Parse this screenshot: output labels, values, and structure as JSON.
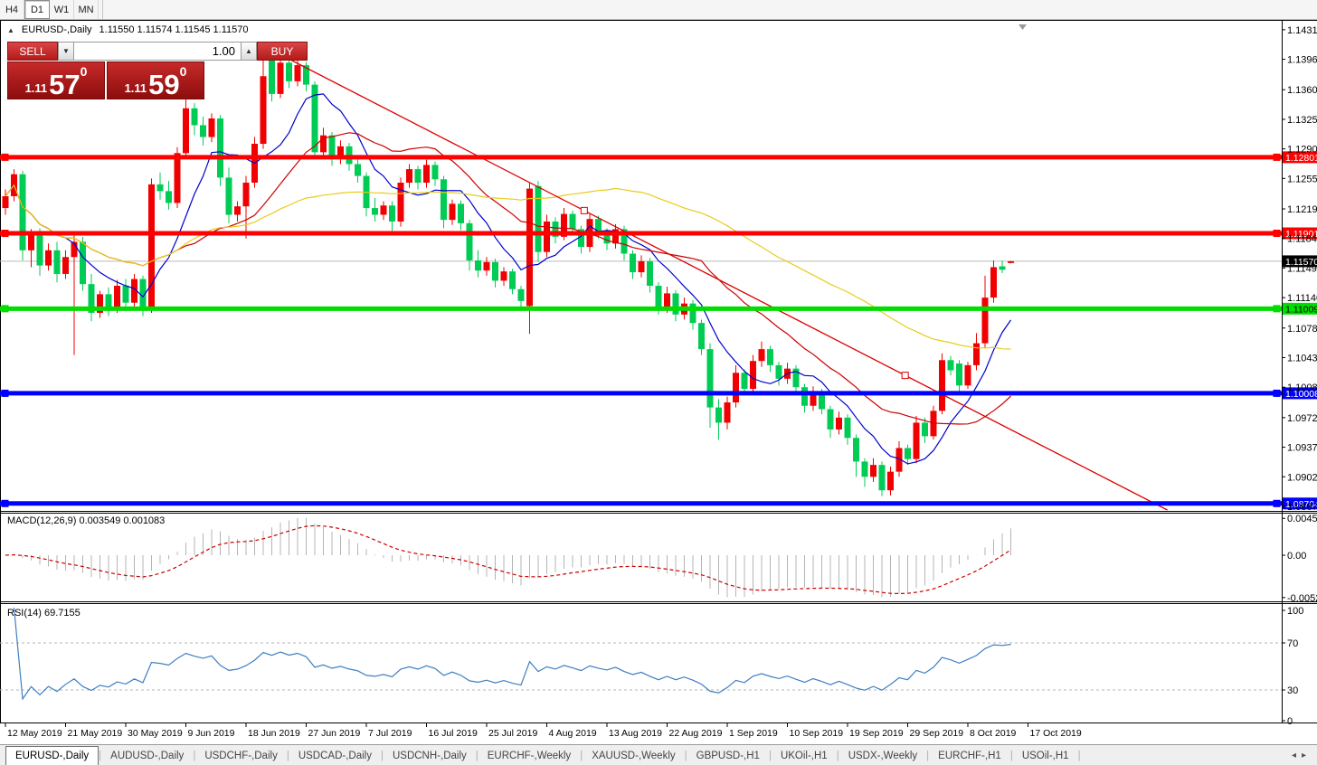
{
  "toolbar": {
    "timeframes": [
      "H4",
      "D1",
      "W1",
      "MN"
    ],
    "active": "D1"
  },
  "window": {
    "title_symbol": "EURUSD-,Daily",
    "title_ohlc": "1.11550 1.11574 1.11545 1.11570"
  },
  "trade_panel": {
    "sell_label": "SELL",
    "buy_label": "BUY",
    "volume": "1.00",
    "sell_price": {
      "prefix": "1.11",
      "pips": "57",
      "frac": "0"
    },
    "buy_price": {
      "prefix": "1.11",
      "pips": "59",
      "frac": "0"
    }
  },
  "price_axis": {
    "ticks": [
      "1.14310",
      "1.13960",
      "1.13600",
      "1.13250",
      "1.12900",
      "1.12550",
      "1.12190",
      "1.11840",
      "1.11490",
      "1.11140",
      "1.10780",
      "1.10430",
      "1.10080",
      "1.09720",
      "1.09370",
      "1.09020",
      "1.08670"
    ]
  },
  "levels": [
    {
      "label": "1.12801",
      "price": 1.12801,
      "color": "#ff0000",
      "text": "#fff"
    },
    {
      "label": "1.11901",
      "price": 1.11901,
      "color": "#ff0000",
      "text": "#fff"
    },
    {
      "label": "1.11009",
      "price": 1.11009,
      "color": "#00dd00",
      "text": "#000"
    },
    {
      "label": "1.10008",
      "price": 1.10008,
      "color": "#0000ff",
      "text": "#fff"
    },
    {
      "label": "1.08704",
      "price": 1.08704,
      "color": "#0000ff",
      "text": "#fff"
    }
  ],
  "current_price": {
    "label": "1.11570",
    "price": 1.1157
  },
  "indicator_panels": {
    "macd": {
      "label": "MACD(12,26,9) 0.003549 0.001083",
      "axis": [
        {
          "label": "0.004530",
          "value": 0.00453
        },
        {
          "label": "0.00",
          "value": 0
        },
        {
          "label": "-0.005200",
          "value": -0.0052
        }
      ]
    },
    "rsi": {
      "label": "RSI(14) 69.7155",
      "axis": [
        {
          "label": "100",
          "value": 100
        },
        {
          "label": "70",
          "value": 70
        },
        {
          "label": "30",
          "value": 30
        },
        {
          "label": "0",
          "value": 0
        }
      ],
      "levels": [
        70,
        30
      ]
    }
  },
  "tabs": {
    "items": [
      "EURUSD-,Daily",
      "AUDUSD-,Daily",
      "USDCHF-,Daily",
      "USDCAD-,Daily",
      "USDCNH-,Daily",
      "EURCHF-,Weekly",
      "XAUUSD-,Weekly",
      "GBPUSD-,H1",
      "UKOil-,H1",
      "USDX-,Weekly",
      "EURCHF-,H1",
      "USOil-,H1"
    ],
    "active": 0
  },
  "chart_data": {
    "type": "candlestick",
    "symbol": "EURUSD-",
    "timeframe": "Daily",
    "price_scale": 10000,
    "ylim": [
      1.0862,
      1.1434
    ],
    "colors": {
      "up": "#f00000",
      "down": "#00cc55",
      "macd_hist": "#b4b4b4",
      "macd_signal": "#cc0000",
      "rsi": "#3d7fc1",
      "trend": "#dd0000"
    },
    "moving_averages": [
      {
        "period": 8,
        "color": "#0000cc"
      },
      {
        "period": 21,
        "color": "#cc0000"
      },
      {
        "period": 55,
        "color": "#e8cc1a"
      }
    ],
    "trendline": {
      "from": {
        "bar": 30,
        "price": 1.1412
      },
      "to": {
        "bar": 104.7,
        "price": 1.1022
      },
      "ray": true
    },
    "x_labels": [
      "12 May 2019",
      "21 May 2019",
      "30 May 2019",
      "9 Jun 2019",
      "18 Jun 2019",
      "27 Jun 2019",
      "7 Jul 2019",
      "16 Jul 2019",
      "25 Jul 2019",
      "4 Aug 2019",
      "13 Aug 2019",
      "22 Aug 2019",
      "1 Sep 2019",
      "10 Sep 2019",
      "19 Sep 2019",
      "29 Sep 2019",
      "8 Oct 2019",
      "17 Oct 2019"
    ],
    "bars_per_label": 7,
    "candles": [
      [
        11220,
        11242,
        11212,
        11234
      ],
      [
        11234,
        11266,
        11228,
        11260
      ],
      [
        11260,
        11264,
        11158,
        11170
      ],
      [
        11170,
        11195,
        11150,
        11188
      ],
      [
        11188,
        11196,
        11140,
        11152
      ],
      [
        11152,
        11178,
        11146,
        11170
      ],
      [
        11170,
        11180,
        11132,
        11142
      ],
      [
        11142,
        11170,
        11136,
        11162
      ],
      [
        11162,
        11188,
        11046,
        11180
      ],
      [
        11180,
        11186,
        11122,
        11130
      ],
      [
        11130,
        11142,
        11086,
        11096
      ],
      [
        11096,
        11122,
        11090,
        11118
      ],
      [
        11118,
        11126,
        11092,
        11102
      ],
      [
        11102,
        11135,
        11096,
        11128
      ],
      [
        11128,
        11136,
        11098,
        11108
      ],
      [
        11108,
        11142,
        11102,
        11136
      ],
      [
        11136,
        11140,
        11092,
        11102
      ],
      [
        11102,
        11255,
        11096,
        11248
      ],
      [
        11248,
        11262,
        11230,
        11240
      ],
      [
        11240,
        11252,
        11218,
        11226
      ],
      [
        11226,
        11292,
        11220,
        11285
      ],
      [
        11285,
        11350,
        11278,
        11338
      ],
      [
        11338,
        11344,
        11306,
        11318
      ],
      [
        11318,
        11328,
        11294,
        11304
      ],
      [
        11304,
        11332,
        11298,
        11326
      ],
      [
        11326,
        11330,
        11246,
        11256
      ],
      [
        11256,
        11268,
        11202,
        11212
      ],
      [
        11212,
        11228,
        11204,
        11222
      ],
      [
        11222,
        11258,
        11184,
        11250
      ],
      [
        11250,
        11304,
        11244,
        11296
      ],
      [
        11296,
        11412,
        11290,
        11376
      ],
      [
        11408,
        11414,
        11346,
        11355
      ],
      [
        11355,
        11400,
        11350,
        11392
      ],
      [
        11392,
        11398,
        11362,
        11370
      ],
      [
        11370,
        11397,
        11364,
        11389
      ],
      [
        11389,
        11393,
        11358,
        11366
      ],
      [
        11366,
        11370,
        11278,
        11286
      ],
      [
        11286,
        11315,
        11280,
        11306
      ],
      [
        11306,
        11310,
        11270,
        11278
      ],
      [
        11278,
        11300,
        11272,
        11293
      ],
      [
        11293,
        11297,
        11264,
        11272
      ],
      [
        11272,
        11278,
        11250,
        11258
      ],
      [
        11258,
        11262,
        11210,
        11220
      ],
      [
        11220,
        11232,
        11204,
        11212
      ],
      [
        11212,
        11228,
        11206,
        11223
      ],
      [
        11223,
        11228,
        11193,
        11204
      ],
      [
        11204,
        11256,
        11198,
        11250
      ],
      [
        11250,
        11272,
        11244,
        11266
      ],
      [
        11266,
        11270,
        11242,
        11250
      ],
      [
        11250,
        11277,
        11244,
        11271
      ],
      [
        11271,
        11275,
        11246,
        11254
      ],
      [
        11254,
        11258,
        11196,
        11206
      ],
      [
        11206,
        11230,
        11200,
        11225
      ],
      [
        11225,
        11229,
        11194,
        11202
      ],
      [
        11202,
        11206,
        11146,
        11158
      ],
      [
        11158,
        11170,
        11138,
        11146
      ],
      [
        11146,
        11162,
        11140,
        11156
      ],
      [
        11156,
        11160,
        11126,
        11134
      ],
      [
        11134,
        11150,
        11128,
        11145
      ],
      [
        11145,
        11148,
        11118,
        11124
      ],
      [
        11124,
        11128,
        11098,
        11110
      ],
      [
        11104,
        11250,
        11071,
        11243
      ],
      [
        11246,
        11252,
        11156,
        11168
      ],
      [
        11168,
        11212,
        11162,
        11204
      ],
      [
        11204,
        11209,
        11178,
        11186
      ],
      [
        11186,
        11220,
        11182,
        11213
      ],
      [
        11213,
        11217,
        11188,
        11195
      ],
      [
        11195,
        11199,
        11166,
        11174
      ],
      [
        11174,
        11214,
        11168,
        11207
      ],
      [
        11207,
        11211,
        11184,
        11191
      ],
      [
        11191,
        11196,
        11170,
        11178
      ],
      [
        11178,
        11201,
        11172,
        11195
      ],
      [
        11195,
        11199,
        11158,
        11166
      ],
      [
        11166,
        11170,
        11136,
        11144
      ],
      [
        11144,
        11164,
        11138,
        11157
      ],
      [
        11157,
        11161,
        11120,
        11128
      ],
      [
        11128,
        11132,
        11094,
        11102
      ],
      [
        11102,
        11127,
        11096,
        11119
      ],
      [
        11119,
        11123,
        11086,
        11094
      ],
      [
        11094,
        11114,
        11088,
        11107
      ],
      [
        11107,
        11111,
        11076,
        11084
      ],
      [
        11084,
        11088,
        11046,
        11053
      ],
      [
        11053,
        11060,
        10960,
        10984
      ],
      [
        10984,
        10994,
        10946,
        10966
      ],
      [
        10966,
        10997,
        10958,
        10990
      ],
      [
        10990,
        11034,
        10984,
        11025
      ],
      [
        11025,
        11029,
        11000,
        11006
      ],
      [
        11006,
        11046,
        11000,
        11039
      ],
      [
        11039,
        11062,
        11032,
        11053
      ],
      [
        11053,
        11057,
        11026,
        11034
      ],
      [
        11034,
        11038,
        11010,
        11018
      ],
      [
        11018,
        11037,
        11012,
        11030
      ],
      [
        11030,
        11034,
        11000,
        11008
      ],
      [
        11008,
        11012,
        10978,
        10986
      ],
      [
        10986,
        11009,
        10980,
        11002
      ],
      [
        11002,
        11006,
        10976,
        10982
      ],
      [
        10982,
        10986,
        10948,
        10958
      ],
      [
        10958,
        10979,
        10952,
        10972
      ],
      [
        10972,
        10976,
        10940,
        10948
      ],
      [
        10948,
        10952,
        10902,
        10920
      ],
      [
        10920,
        10924,
        10890,
        10902
      ],
      [
        10902,
        10924,
        10896,
        10916
      ],
      [
        10916,
        10920,
        10879,
        10886
      ],
      [
        10886,
        10914,
        10880,
        10908
      ],
      [
        10908,
        10944,
        10902,
        10936
      ],
      [
        10936,
        10940,
        10916,
        10923
      ],
      [
        10923,
        10974,
        10918,
        10966
      ],
      [
        10966,
        10972,
        10942,
        10950
      ],
      [
        10950,
        10986,
        10946,
        10980
      ],
      [
        10980,
        11048,
        10976,
        11040
      ],
      [
        11040,
        11045,
        11022,
        11028
      ],
      [
        11036,
        11040,
        11000,
        11010
      ],
      [
        11010,
        11038,
        11006,
        11034
      ],
      [
        11034,
        11072,
        11028,
        11060
      ],
      [
        11060,
        11140,
        11054,
        11114
      ],
      [
        11114,
        11158,
        11108,
        11150
      ],
      [
        11151,
        11158,
        11143,
        11147
      ],
      [
        11155,
        11157.4,
        11154.5,
        11157
      ]
    ]
  }
}
